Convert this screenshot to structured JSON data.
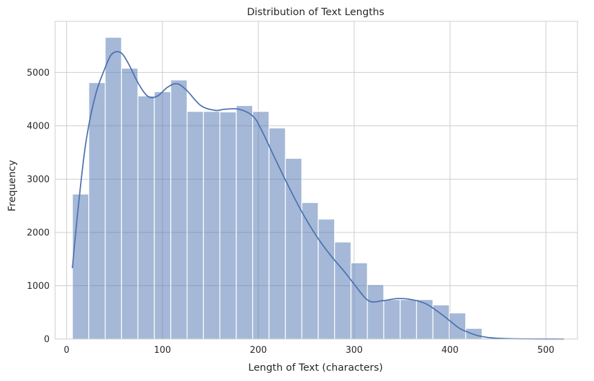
{
  "chart_data": {
    "type": "bar",
    "title": "Distribution of Text Lengths",
    "xlabel": "Length of Text (characters)",
    "ylabel": "Frequency",
    "xlim": [
      -12,
      533
    ],
    "ylim": [
      0,
      5960
    ],
    "xticks": [
      0,
      100,
      200,
      300,
      400,
      500
    ],
    "yticks": [
      0,
      1000,
      2000,
      3000,
      4000,
      5000
    ],
    "grid": true,
    "bins": {
      "width": 17.1,
      "starts": [
        6.0,
        23.1,
        40.2,
        57.3,
        74.4,
        91.5,
        108.6,
        125.7,
        142.8,
        159.9,
        177.0,
        194.1,
        211.2,
        228.3,
        245.4,
        262.5,
        279.6,
        296.7,
        313.8,
        330.9,
        348.0,
        365.1,
        382.2,
        399.3,
        416.4,
        433.5,
        450.6,
        467.7,
        484.8,
        501.9
      ],
      "counts": [
        2720,
        4810,
        5660,
        5080,
        4560,
        4640,
        4860,
        4270,
        4270,
        4260,
        4380,
        4270,
        3960,
        3390,
        2560,
        2250,
        1820,
        1430,
        1020,
        740,
        740,
        740,
        640,
        490,
        200,
        20,
        10,
        5,
        5,
        10
      ]
    },
    "kde": {
      "x": [
        6,
        12,
        20,
        30,
        40,
        46,
        52,
        58,
        65,
        75,
        85,
        95,
        105,
        115,
        125,
        140,
        155,
        165,
        180,
        195,
        205,
        215,
        230,
        245,
        260,
        275,
        290,
        300,
        315,
        330,
        345,
        360,
        375,
        390,
        400,
        410,
        420,
        430,
        445,
        460,
        480,
        500,
        519
      ],
      "y": [
        1330,
        2450,
        3680,
        4570,
        5080,
        5320,
        5390,
        5350,
        5150,
        4790,
        4550,
        4560,
        4720,
        4790,
        4670,
        4380,
        4290,
        4310,
        4310,
        4170,
        3860,
        3480,
        2920,
        2400,
        1950,
        1580,
        1260,
        1030,
        720,
        720,
        760,
        740,
        660,
        480,
        340,
        200,
        120,
        60,
        20,
        8,
        3,
        1,
        0
      ]
    },
    "colors": {
      "bar_fill": "#4c72b0",
      "bar_opacity": 0.5,
      "bar_edge": "#ffffff",
      "kde_line": "#4c72b0",
      "grid": "#cccccc",
      "axes_edge": "#cccccc"
    }
  }
}
